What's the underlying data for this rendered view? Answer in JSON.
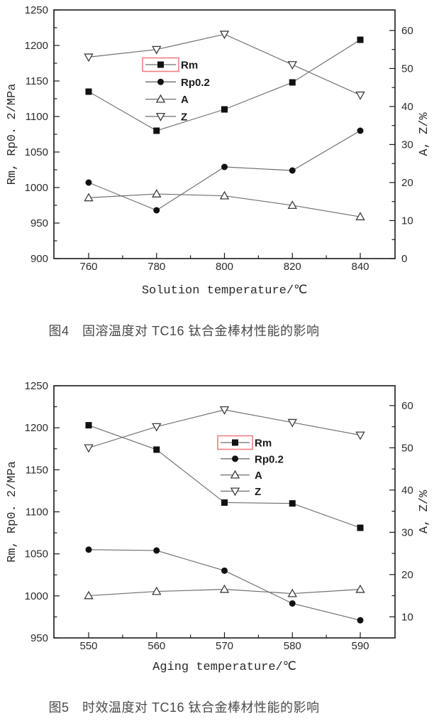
{
  "figures": [
    {
      "caption": "图4　固溶温度对 TC16 钛合金棒材性能的影响"
    },
    {
      "caption": "图5　时效温度对 TC16 钛合金棒材性能的影响"
    }
  ],
  "colors": {
    "axis": "#1a1a1a",
    "series_line": "#6e6e6e",
    "marker_fill": "#111111",
    "open_marker_stroke": "#3d3d3d",
    "legend_highlight": "#f08080",
    "tick_text": "#2b2b2b",
    "caption_text": "#4a4a4a"
  },
  "chart_data": [
    {
      "type": "line",
      "title": "",
      "xlabel": "Solution temperature/℃",
      "ylabel_left": "Rm, Rp0. 2/MPa",
      "ylabel_right": "A, Z/%",
      "x": [
        760,
        780,
        800,
        820,
        840
      ],
      "left_axis": {
        "min": 900,
        "max": 1250,
        "ticks": [
          900,
          950,
          1000,
          1050,
          1100,
          1150,
          1200,
          1250
        ]
      },
      "right_axis": {
        "min": 0,
        "max": 65.4,
        "ticks": [
          0,
          10,
          20,
          30,
          40,
          50,
          60
        ],
        "minor": [
          5,
          15,
          25,
          35,
          45,
          55
        ]
      },
      "grid": false,
      "legend_position": "inside-upper-middle",
      "series": [
        {
          "name": "Rm",
          "axis": "left",
          "marker": "square-filled",
          "highlighted": true,
          "values": [
            1135,
            1080,
            1110,
            1148,
            1208
          ]
        },
        {
          "name": "Rp0.2",
          "axis": "left",
          "marker": "circle-filled",
          "highlighted": false,
          "values": [
            1007,
            968,
            1029,
            1024,
            1080
          ]
        },
        {
          "name": "A",
          "axis": "right",
          "marker": "triangle-up-open",
          "highlighted": false,
          "values": [
            16,
            17,
            16.5,
            14,
            11
          ]
        },
        {
          "name": "Z",
          "axis": "right",
          "marker": "triangle-down-open",
          "highlighted": false,
          "values": [
            53,
            55,
            59,
            51,
            43
          ]
        }
      ]
    },
    {
      "type": "line",
      "title": "",
      "xlabel": "Aging temperature/℃",
      "ylabel_left": "Rm, Rp0. 2/MPa",
      "ylabel_right": "A, Z/%",
      "x": [
        550,
        560,
        570,
        580,
        590
      ],
      "left_axis": {
        "min": 950,
        "max": 1250,
        "ticks": [
          950,
          1000,
          1050,
          1100,
          1150,
          1200,
          1250
        ]
      },
      "right_axis": {
        "min": 5,
        "max": 64.7,
        "ticks": [
          10,
          20,
          30,
          40,
          50,
          60
        ],
        "minor": [
          15,
          25,
          35,
          45,
          55
        ]
      },
      "grid": false,
      "legend_position": "inside-middle-right",
      "series": [
        {
          "name": "Rm",
          "axis": "left",
          "marker": "square-filled",
          "highlighted": true,
          "values": [
            1203,
            1174,
            1111,
            1110,
            1081
          ]
        },
        {
          "name": "Rp0.2",
          "axis": "left",
          "marker": "circle-filled",
          "highlighted": false,
          "values": [
            1055,
            1054,
            1030,
            991,
            971
          ]
        },
        {
          "name": "A",
          "axis": "right",
          "marker": "triangle-up-open",
          "highlighted": false,
          "values": [
            15,
            16,
            16.5,
            15.5,
            16.5
          ]
        },
        {
          "name": "Z",
          "axis": "right",
          "marker": "triangle-down-open",
          "highlighted": false,
          "values": [
            50,
            55,
            59,
            56,
            53
          ]
        }
      ]
    }
  ]
}
